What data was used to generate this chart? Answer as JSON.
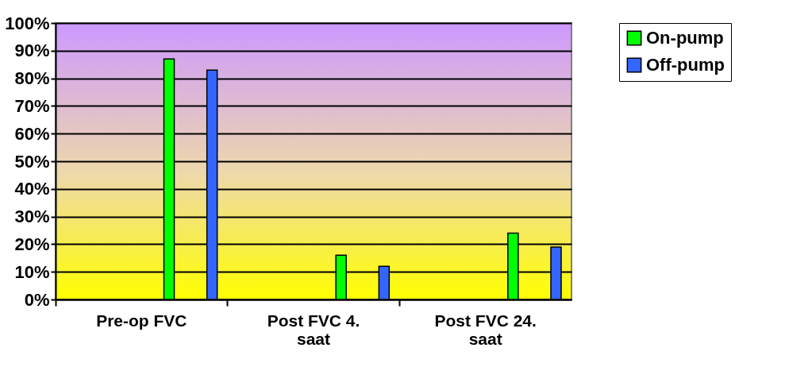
{
  "chart_data": {
    "type": "bar",
    "categories": [
      "Pre-op FVC",
      "Post FVC 4. saat",
      "Post FVC 24. saat"
    ],
    "series": [
      {
        "name": "On-pump",
        "color": "#00ff00",
        "values": [
          87,
          16,
          24
        ]
      },
      {
        "name": "Off-pump",
        "color": "#3366ff",
        "values": [
          83,
          12,
          19
        ]
      }
    ],
    "ylim": [
      0,
      100
    ],
    "yticks": [
      {
        "value": 0,
        "label": "0%"
      },
      {
        "value": 10,
        "label": "10%"
      },
      {
        "value": 20,
        "label": "20%"
      },
      {
        "value": 30,
        "label": "30%"
      },
      {
        "value": 40,
        "label": "40%"
      },
      {
        "value": 50,
        "label": "50%"
      },
      {
        "value": 60,
        "label": "60%"
      },
      {
        "value": 70,
        "label": "70%"
      },
      {
        "value": 80,
        "label": "80%"
      },
      {
        "value": 90,
        "label": "90%"
      },
      {
        "value": 100,
        "label": "100%"
      }
    ],
    "grid": true,
    "legend": "right"
  }
}
